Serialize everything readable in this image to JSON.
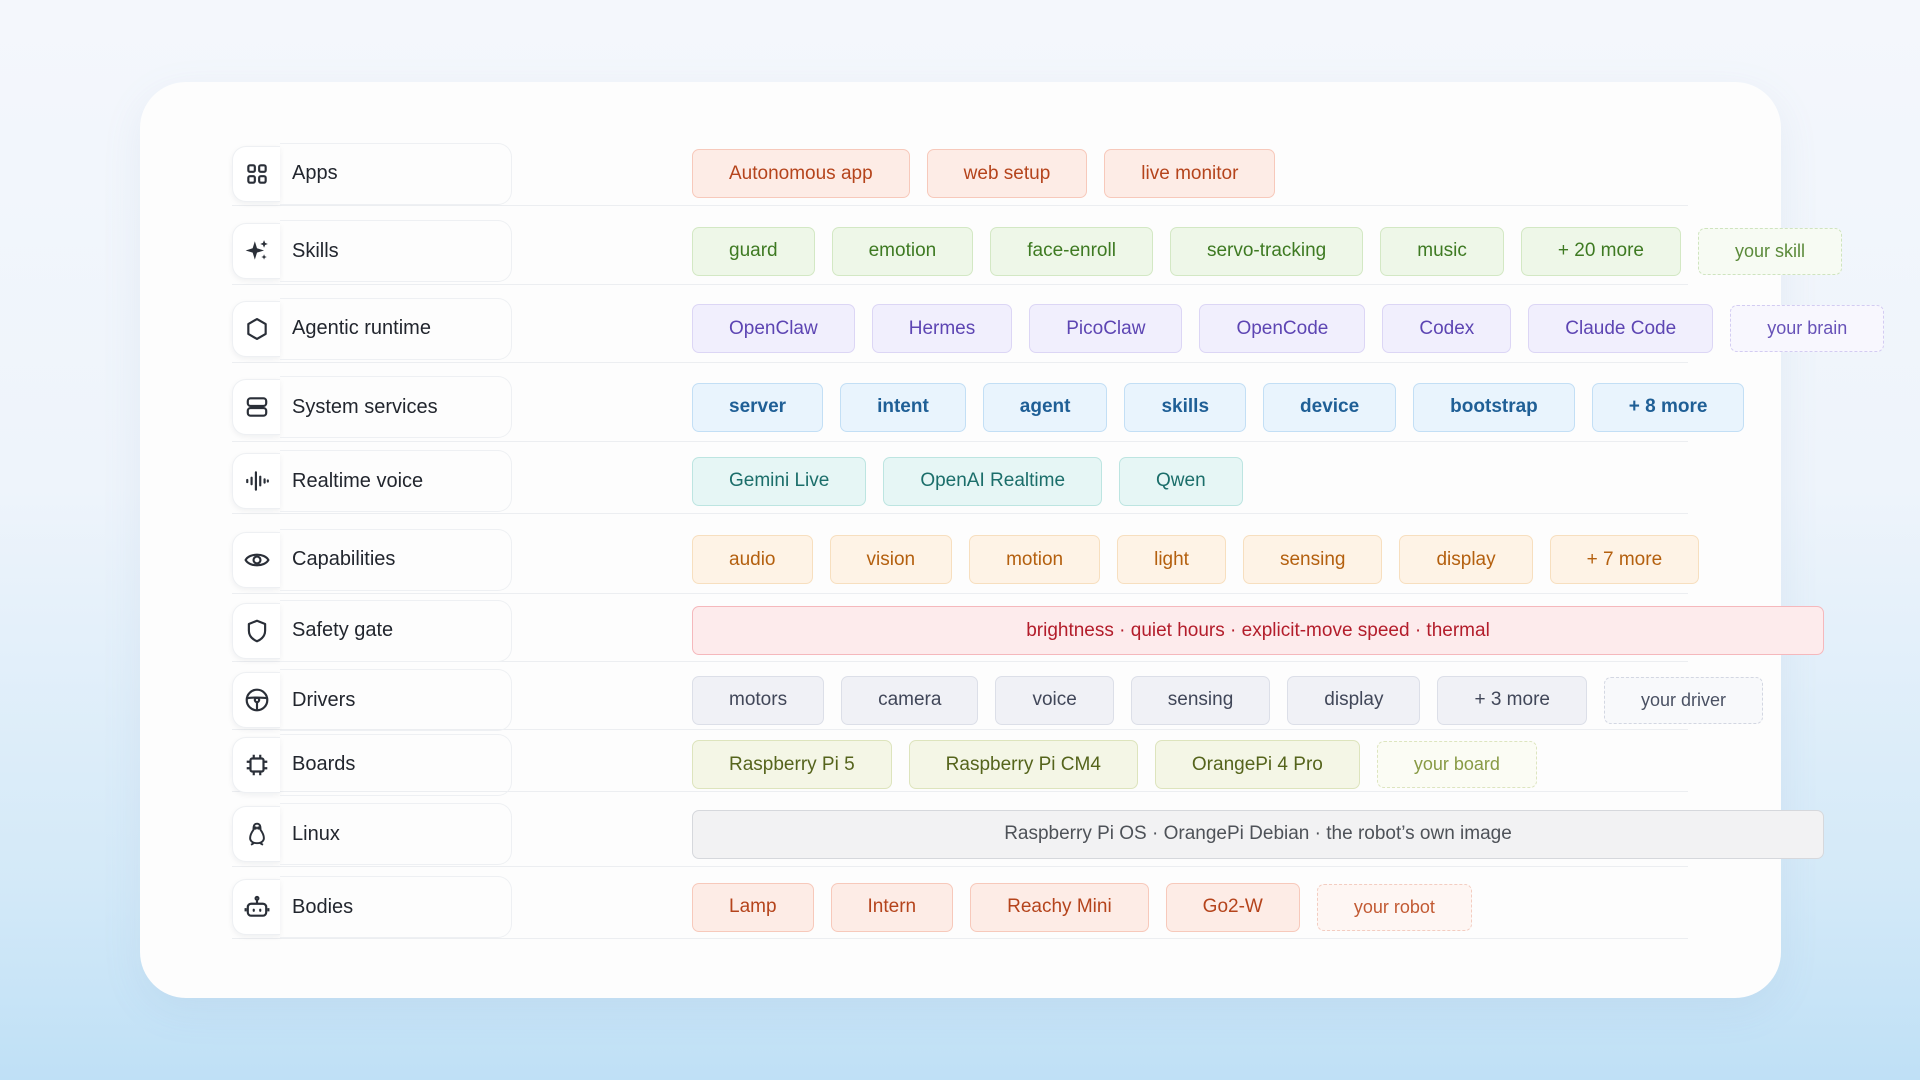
{
  "rows": [
    {
      "label": "Apps",
      "icon": "apps-grid-icon",
      "theme": "red",
      "chips": [
        "Autonomous app",
        "web setup",
        "live monitor"
      ],
      "placeholder": ""
    },
    {
      "label": "Skills",
      "icon": "sparkle-icon",
      "theme": "green",
      "chips": [
        "guard",
        "emotion",
        "face-enroll",
        "servo-tracking",
        "music",
        "+ 20 more"
      ],
      "placeholder": "your skill"
    },
    {
      "label": "Agentic runtime",
      "icon": "hexagon-icon",
      "theme": "purple",
      "chips": [
        "OpenClaw",
        "Hermes",
        "PicoClaw",
        "OpenCode",
        "Codex",
        "Claude Code"
      ],
      "placeholder": "your brain"
    },
    {
      "label": "System services",
      "icon": "server-icon",
      "theme": "blue",
      "chips": [
        "server",
        "intent",
        "agent",
        "skills",
        "device",
        "bootstrap",
        "+ 8 more"
      ],
      "placeholder": ""
    },
    {
      "label": "Realtime voice",
      "icon": "audio-wave-icon",
      "theme": "teal",
      "chips": [
        "Gemini Live",
        "OpenAI Realtime",
        "Qwen"
      ],
      "placeholder": ""
    },
    {
      "label": "Capabilities",
      "icon": "eye-icon",
      "theme": "orange",
      "chips": [
        "audio",
        "vision",
        "motion",
        "light",
        "sensing",
        "display",
        "+ 7 more"
      ],
      "placeholder": ""
    },
    {
      "label": "Safety gate",
      "icon": "shield-icon",
      "theme": "pink",
      "chips": [
        "brightness · quiet hours · explicit-move speed · thermal"
      ],
      "placeholder": ""
    },
    {
      "label": "Drivers",
      "icon": "steering-wheel-icon",
      "theme": "gray",
      "chips": [
        "motors",
        "camera",
        "voice",
        "sensing",
        "display",
        "+ 3 more"
      ],
      "placeholder": "your driver"
    },
    {
      "label": "Boards",
      "icon": "chip-icon",
      "theme": "olive",
      "chips": [
        "Raspberry Pi 5",
        "Raspberry Pi CM4",
        "OrangePi 4 Pro"
      ],
      "placeholder": "your board"
    },
    {
      "label": "Linux",
      "icon": "linux-penguin-icon",
      "theme": "linux",
      "chips": [
        "Raspberry Pi OS · OrangePi Debian · the robot’s own image"
      ],
      "placeholder": ""
    },
    {
      "label": "Bodies",
      "icon": "robot-icon",
      "theme": "red",
      "chips": [
        "Lamp",
        "Intern",
        "Reachy Mini",
        "Go2-W"
      ],
      "placeholder": "your robot"
    }
  ]
}
